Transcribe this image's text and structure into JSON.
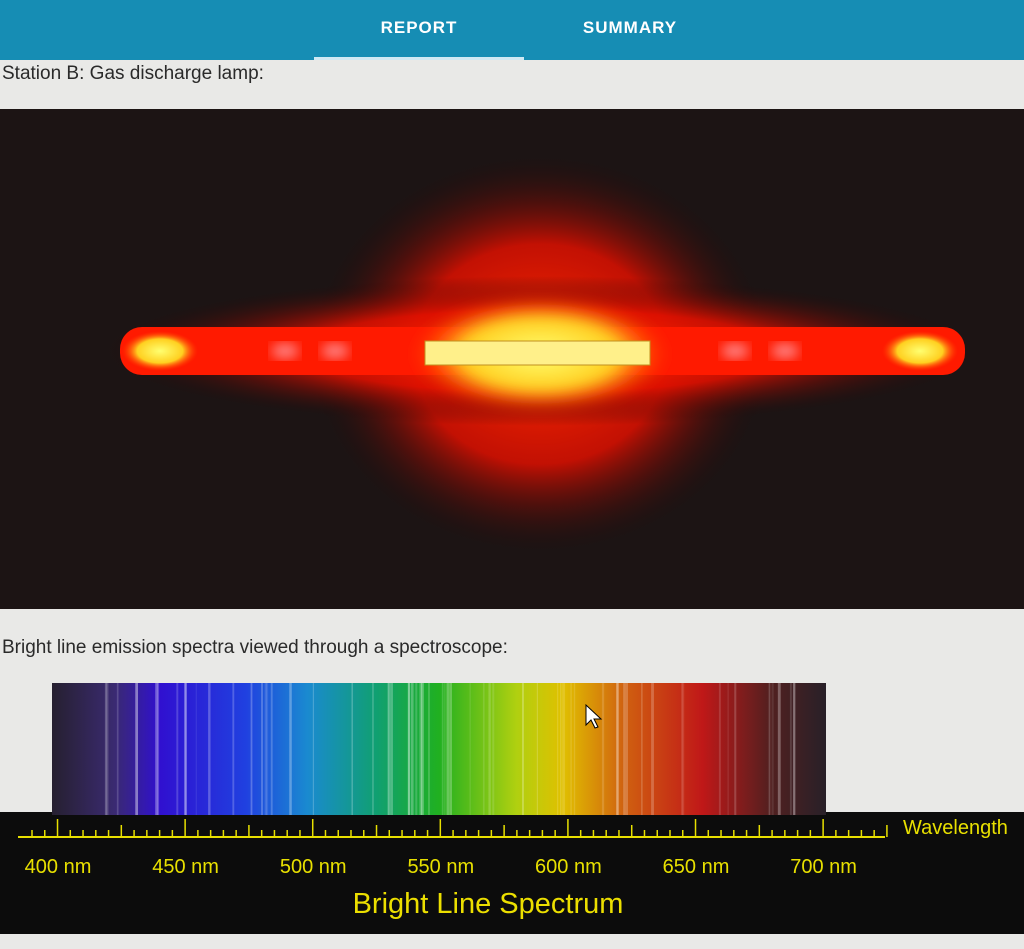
{
  "tabs": [
    "REPORT",
    "SUMMARY"
  ],
  "station_heading": "Station B: Gas discharge lamp:",
  "spectra_heading": "Bright line emission spectra viewed through a spectroscope:",
  "spectrum": {
    "scale_labels": [
      "400 nm",
      "450 nm",
      "500 nm",
      "550 nm",
      "600 nm",
      "650 nm",
      "700 nm"
    ],
    "axis_label": "Wavelength",
    "caption": "Bright Line Spectrum"
  }
}
